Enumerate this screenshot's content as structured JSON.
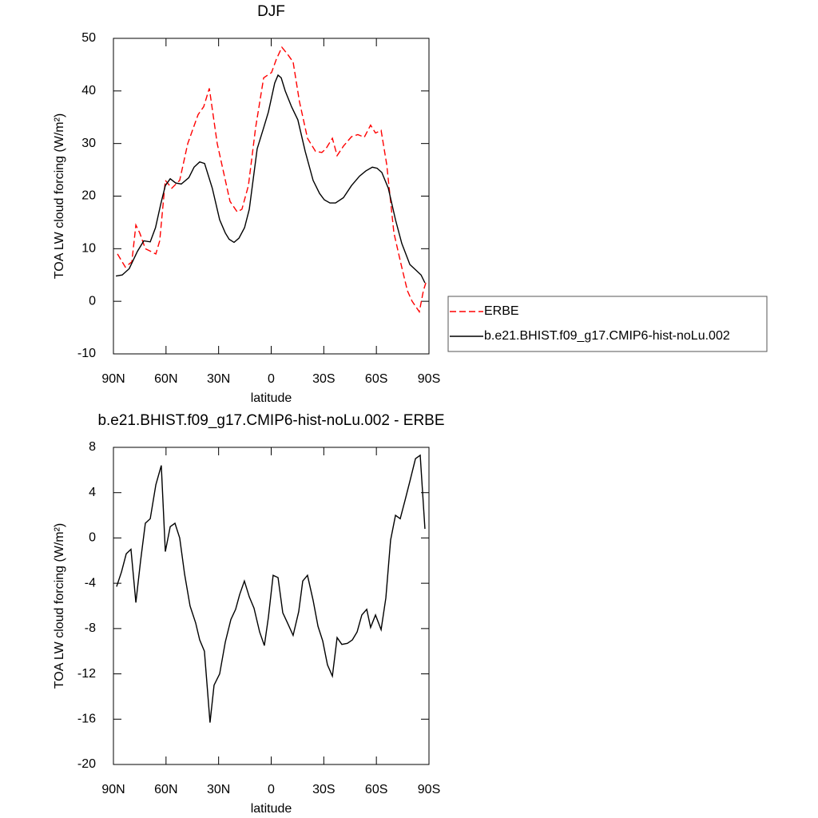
{
  "chart_data": [
    {
      "type": "line",
      "title": "DJF",
      "xlabel": "latitude",
      "ylabel": "TOA LW cloud forcing (W/m²)",
      "xlim": [
        90,
        -90
      ],
      "xticks": [
        {
          "value": 90,
          "label": "90N"
        },
        {
          "value": 60,
          "label": "60N"
        },
        {
          "value": 30,
          "label": "30N"
        },
        0,
        {
          "value": -30,
          "label": "30S"
        },
        {
          "value": -60,
          "label": "60S"
        },
        {
          "value": -90,
          "label": "90S"
        }
      ],
      "ylim": [
        -10,
        50
      ],
      "yticks": [
        -10,
        0,
        10,
        20,
        30,
        40,
        50
      ],
      "legend": "outside-right",
      "series": [
        {
          "name": "ERBE",
          "color": "#ff0000",
          "line_style": "dashed",
          "x": [
            87.7,
            83.2,
            79.5,
            77.2,
            75.0,
            71.8,
            65.8,
            63.6,
            60.4,
            56.7,
            52.2,
            47.6,
            41.7,
            38.5,
            35.3,
            30.8,
            23.5,
            19.4,
            16.7,
            13.0,
            8.9,
            4.3,
            -0.2,
            -2.9,
            -6.1,
            -9.3,
            -12.5,
            -16.1,
            -20.7,
            -25.3,
            -28.9,
            -31.2,
            -34.9,
            -37.6,
            -41.2,
            -45.8,
            -49.4,
            -53.1,
            -56.7,
            -59.5,
            -62.7,
            -65.9,
            -70.0,
            -74.1,
            -77.7,
            -80.4,
            -84.5,
            -86.8,
            -88.2
          ],
          "values": [
            9,
            6.5,
            7.5,
            14.5,
            13,
            10,
            9,
            11.5,
            23,
            21.5,
            23,
            30,
            35.5,
            37,
            40.5,
            30,
            19,
            17,
            17.5,
            22,
            33,
            42.5,
            43.5,
            46,
            48.3,
            47,
            45.5,
            38,
            31,
            28.5,
            28.3,
            29,
            31,
            27.7,
            29.5,
            31.3,
            31.7,
            31.2,
            33.5,
            32,
            32.5,
            26,
            13,
            7,
            2,
            0,
            -2,
            2,
            3.5
          ]
        },
        {
          "name": "b.e21.BHIST.f09_g17.CMIP6-hist-noLu.002",
          "color": "#000000",
          "line_style": "solid",
          "x": [
            88.6,
            85.0,
            81.0,
            76.3,
            72.7,
            69.0,
            66.0,
            63.0,
            60.4,
            57.6,
            54.5,
            51.3,
            47.0,
            44.0,
            40.8,
            38.0,
            33.6,
            29.4,
            26.2,
            24.0,
            21.2,
            18.4,
            15.2,
            12.5,
            8.0,
            4.3,
            1.6,
            -2.0,
            -3.9,
            -5.7,
            -8.0,
            -11.6,
            -15.2,
            -19.4,
            -23.9,
            -27.6,
            -30.3,
            -33.5,
            -36.7,
            -41.2,
            -45.8,
            -50.4,
            -54.0,
            -57.7,
            -60.4,
            -63.1,
            -66.8,
            -70.9,
            -74.5,
            -79.1,
            -82.3,
            -85.5,
            -87.7
          ],
          "values": [
            4.8,
            5,
            6.2,
            9.5,
            11.5,
            11.3,
            14,
            18.5,
            22,
            23.3,
            22.5,
            22.3,
            23.5,
            25.5,
            26.5,
            26.2,
            21.5,
            15.5,
            13,
            11.8,
            11.2,
            12,
            14,
            17.5,
            29,
            33,
            36,
            41.5,
            43,
            42.5,
            40,
            37,
            34.5,
            28.5,
            23,
            20.5,
            19.3,
            18.7,
            18.7,
            19.7,
            22,
            23.8,
            24.8,
            25.5,
            25.3,
            24.5,
            21.5,
            15.5,
            11,
            7,
            6,
            5,
            3.5
          ]
        }
      ]
    },
    {
      "type": "line",
      "title": "b.e21.BHIST.f09_g17.CMIP6-hist-noLu.002 - ERBE",
      "xlabel": "latitude",
      "ylabel": "TOA LW cloud forcing (W/m²)",
      "xlim": [
        90,
        -90
      ],
      "xticks": [
        {
          "value": 90,
          "label": "90N"
        },
        {
          "value": 60,
          "label": "60N"
        },
        {
          "value": 30,
          "label": "30N"
        },
        0,
        {
          "value": -30,
          "label": "30S"
        },
        {
          "value": -60,
          "label": "60S"
        },
        {
          "value": -90,
          "label": "90S"
        }
      ],
      "ylim": [
        -20,
        8
      ],
      "yticks": [
        -20,
        -16,
        -12,
        -8,
        -4,
        0,
        4,
        8
      ],
      "series": [
        {
          "color": "#000000",
          "line_style": "solid",
          "x": [
            88.2,
            85.4,
            82.7,
            80.0,
            77.2,
            74.5,
            71.8,
            69.0,
            65.8,
            62.7,
            60.4,
            57.6,
            54.9,
            52.2,
            49.4,
            46.3,
            43.1,
            40.8,
            38.1,
            34.9,
            32.6,
            29.4,
            26.2,
            23.0,
            20.3,
            18.0,
            15.3,
            12.5,
            9.8,
            6.6,
            3.9,
            1.6,
            -1.1,
            -3.9,
            -6.6,
            -9.3,
            -12.5,
            -15.7,
            -18.0,
            -20.7,
            -23.9,
            -26.7,
            -29.4,
            -32.1,
            -34.9,
            -37.6,
            -40.3,
            -43.5,
            -46.3,
            -49.0,
            -51.7,
            -54.5,
            -56.7,
            -59.5,
            -62.7,
            -65.4,
            -68.1,
            -70.9,
            -73.6,
            -76.3,
            -79.1,
            -82.3,
            -85.0,
            -87.7
          ],
          "values": [
            -4.3,
            -3,
            -1.4,
            -1,
            -5.7,
            -2,
            1.3,
            1.7,
            4.7,
            6.4,
            -1.2,
            1,
            1.3,
            0,
            -3.2,
            -6,
            -7.5,
            -9,
            -10,
            -16.3,
            -13,
            -12,
            -9.2,
            -7.2,
            -6.3,
            -5,
            -3.8,
            -5.2,
            -6.2,
            -8.3,
            -9.5,
            -7,
            -3.3,
            -3.5,
            -6.6,
            -7.5,
            -8.6,
            -6.5,
            -3.8,
            -3.3,
            -5.5,
            -7.8,
            -9.1,
            -11.2,
            -12.2,
            -8.8,
            -9.4,
            -9.3,
            -9,
            -8.3,
            -6.8,
            -6.3,
            -7.9,
            -6.8,
            -8.1,
            -5.3,
            -0.2,
            2,
            1.7,
            3.3,
            5,
            7,
            7.3,
            0.8
          ]
        }
      ]
    }
  ]
}
